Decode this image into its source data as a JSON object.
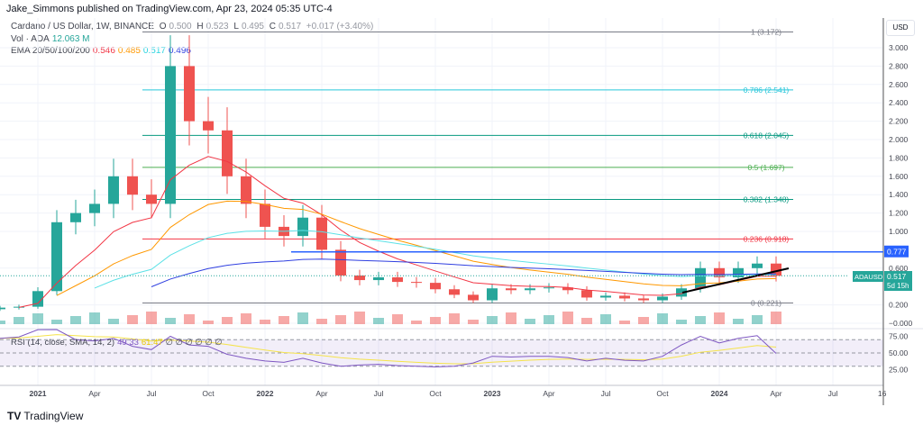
{
  "header": {
    "published": "Jake_Simmons published on TradingView.com, Apr 23, 2024 05:35 UTC-4"
  },
  "legend": {
    "symbol": "Cardano / US Dollar, 1W, BINANCE",
    "o_label": "O",
    "o": "0.500",
    "h_label": "H",
    "h": "0.523",
    "l_label": "L",
    "l": "0.495",
    "c_label": "C",
    "c": "0.517",
    "change": "+0.017 (+3.40%)",
    "vol_label": "Vol · ADA",
    "vol": "12.063 M",
    "ema_label": "EMA 20/50/100/200",
    "ema20": "0.546",
    "ema50": "0.485",
    "ema100": "0.517",
    "ema200": "0.496",
    "rsi_label": "RSI (14, close, SMA, 14, 2)",
    "rsi": "49.33",
    "rsi_sma": "61.47",
    "rsi_na": "∅ ∅ ∅ ∅ ∅ ∅"
  },
  "colors": {
    "up": "#26a69a",
    "down": "#ef5350",
    "ema20": "#f23645",
    "ema50": "#ff9800",
    "ema100": "#5ce1e6",
    "ema200": "#2f3fe0",
    "hline": "#2962ff",
    "rsi": "#7e57c2",
    "rsi_sma": "#f5e34a"
  },
  "price_axis": {
    "unit": "USD",
    "ticks": [
      "3.000",
      "2.800",
      "2.600",
      "2.400",
      "2.200",
      "2.000",
      "1.800",
      "1.600",
      "1.400",
      "1.200",
      "1.000",
      "0.600",
      "0.200",
      "−0.000"
    ],
    "hline_label": "0.777",
    "last_symbol": "ADAUSD",
    "last_price": "0.517",
    "countdown": "5d 15h"
  },
  "rsi_axis": {
    "ticks": [
      "75.00",
      "50.00",
      "25.00"
    ]
  },
  "time_axis": {
    "ticks": [
      "2021",
      "Apr",
      "Jul",
      "Oct",
      "2022",
      "Apr",
      "Jul",
      "Oct",
      "2023",
      "Apr",
      "Jul",
      "Oct",
      "2024",
      "Apr",
      "Jul",
      "16"
    ]
  },
  "footer": {
    "brand": "TradingView"
  },
  "chart_data": {
    "type": "candlestick",
    "title": "Cardano / US Dollar, 1W, BINANCE",
    "ylim": [
      0,
      3.2
    ],
    "fib_levels": [
      {
        "label": "1 (3.172)",
        "value": 3.172,
        "color": "#787b86"
      },
      {
        "label": "0.786 (2.541)",
        "value": 2.541,
        "color": "#26c6da"
      },
      {
        "label": "0.618 (2.045)",
        "value": 2.045,
        "color": "#089981"
      },
      {
        "label": "0.5 (1.697)",
        "value": 1.697,
        "color": "#4caf50"
      },
      {
        "label": "0.382 (1.348)",
        "value": 1.348,
        "color": "#089981"
      },
      {
        "label": "0.236 (0.918)",
        "value": 0.918,
        "color": "#f23645"
      },
      {
        "label": "0 (0.221)",
        "value": 0.221,
        "color": "#787b86"
      }
    ],
    "horizontal_line": 0.777,
    "months": [
      "2020-11",
      "2020-12",
      "2021-01",
      "2021-02",
      "2021-03",
      "2021-04",
      "2021-05",
      "2021-06",
      "2021-07",
      "2021-08",
      "2021-09",
      "2021-10",
      "2021-11",
      "2021-12",
      "2022-01",
      "2022-02",
      "2022-03",
      "2022-04",
      "2022-05",
      "2022-06",
      "2022-07",
      "2022-08",
      "2022-09",
      "2022-10",
      "2022-11",
      "2022-12",
      "2023-01",
      "2023-02",
      "2023-03",
      "2023-04",
      "2023-05",
      "2023-06",
      "2023-07",
      "2023-08",
      "2023-09",
      "2023-10",
      "2023-11",
      "2023-12",
      "2024-01",
      "2024-02",
      "2024-03",
      "2024-04"
    ],
    "close": [
      0.17,
      0.18,
      0.35,
      1.1,
      1.2,
      1.3,
      1.6,
      1.4,
      1.3,
      2.8,
      2.2,
      2.1,
      1.6,
      1.3,
      1.05,
      0.95,
      1.15,
      0.8,
      0.52,
      0.47,
      0.5,
      0.45,
      0.44,
      0.37,
      0.31,
      0.25,
      0.38,
      0.36,
      0.38,
      0.39,
      0.36,
      0.28,
      0.3,
      0.27,
      0.25,
      0.29,
      0.38,
      0.6,
      0.5,
      0.6,
      0.65,
      0.517
    ],
    "rsi": [
      72,
      74,
      85,
      88,
      70,
      68,
      72,
      60,
      55,
      75,
      62,
      60,
      48,
      42,
      38,
      36,
      42,
      35,
      30,
      32,
      33,
      31,
      30,
      29,
      30,
      35,
      45,
      44,
      45,
      45,
      43,
      38,
      42,
      39,
      38,
      45,
      62,
      75,
      65,
      72,
      76,
      49.33
    ]
  }
}
